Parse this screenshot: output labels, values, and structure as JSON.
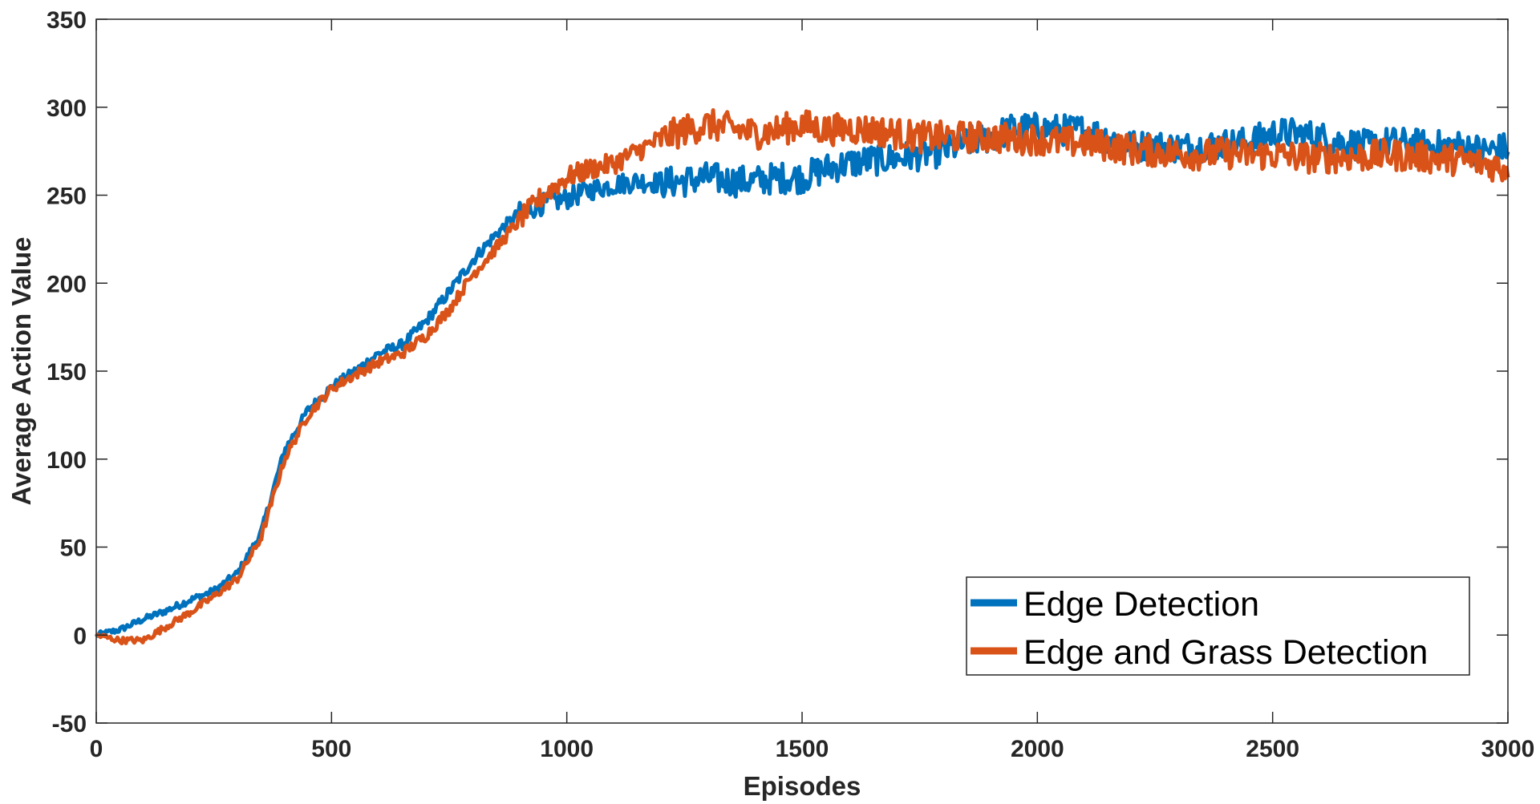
{
  "chart_data": {
    "type": "line",
    "title": "",
    "xlabel": "Episodes",
    "ylabel": "Average Action Value",
    "xlim": [
      0,
      3000
    ],
    "ylim": [
      -50,
      350
    ],
    "xticks": [
      0,
      500,
      1000,
      1500,
      2000,
      2500,
      3000
    ],
    "yticks": [
      -50,
      0,
      50,
      100,
      150,
      200,
      250,
      300,
      350
    ],
    "xtick_labels": [
      "0",
      "500",
      "1000",
      "1500",
      "2000",
      "2500",
      "3000"
    ],
    "ytick_labels": [
      "-50",
      "0",
      "50",
      "100",
      "150",
      "200",
      "250",
      "300",
      "350"
    ],
    "grid": false,
    "legend_position": "bottom-right",
    "legend_labels": [
      "Edge Detection",
      "Edge and Grass Detection"
    ],
    "series": [
      {
        "name": "Edge Detection",
        "color": "#0072BD",
        "x": [
          0,
          50,
          100,
          150,
          200,
          250,
          300,
          350,
          400,
          450,
          500,
          550,
          600,
          650,
          700,
          750,
          800,
          850,
          900,
          950,
          1000,
          1050,
          1100,
          1150,
          1200,
          1250,
          1300,
          1350,
          1400,
          1450,
          1500,
          1550,
          1600,
          1650,
          1700,
          1750,
          1800,
          1850,
          1900,
          1950,
          2000,
          2050,
          2100,
          2150,
          2200,
          2250,
          2300,
          2350,
          2400,
          2450,
          2500,
          2550,
          2600,
          2650,
          2700,
          2750,
          2800,
          2850,
          2900,
          2950,
          3000
        ],
        "y": [
          0,
          3,
          9,
          14,
          20,
          25,
          35,
          58,
          105,
          128,
          141,
          150,
          160,
          165,
          178,
          195,
          213,
          228,
          240,
          245,
          248,
          253,
          256,
          258,
          257,
          258,
          260,
          258,
          258,
          260,
          260,
          265,
          268,
          270,
          271,
          273,
          275,
          280,
          283,
          288,
          288,
          287,
          287,
          283,
          278,
          278,
          277,
          278,
          279,
          280,
          285,
          285,
          283,
          280,
          278,
          280,
          279,
          278,
          278,
          275,
          277
        ]
      },
      {
        "name": "Edge and Grass Detection",
        "color": "#D95319",
        "x": [
          0,
          50,
          100,
          150,
          200,
          250,
          300,
          350,
          400,
          450,
          500,
          550,
          600,
          650,
          700,
          750,
          800,
          850,
          900,
          950,
          1000,
          1050,
          1100,
          1150,
          1200,
          1250,
          1300,
          1350,
          1400,
          1450,
          1500,
          1550,
          1600,
          1650,
          1700,
          1750,
          1800,
          1850,
          1900,
          1950,
          2000,
          2050,
          2100,
          2150,
          2200,
          2250,
          2300,
          2350,
          2400,
          2450,
          2500,
          2550,
          2600,
          2650,
          2700,
          2750,
          2800,
          2850,
          2900,
          2950,
          3000
        ],
        "y": [
          0,
          -3,
          -3,
          5,
          13,
          22,
          32,
          55,
          100,
          125,
          140,
          148,
          155,
          160,
          170,
          185,
          205,
          220,
          236,
          250,
          260,
          265,
          268,
          275,
          282,
          287,
          290,
          288,
          285,
          287,
          290,
          287,
          288,
          287,
          285,
          283,
          283,
          283,
          283,
          282,
          282,
          280,
          280,
          278,
          276,
          275,
          274,
          273,
          274,
          273,
          273,
          272,
          271,
          272,
          272,
          273,
          272,
          271,
          270,
          268,
          265
        ]
      }
    ]
  }
}
